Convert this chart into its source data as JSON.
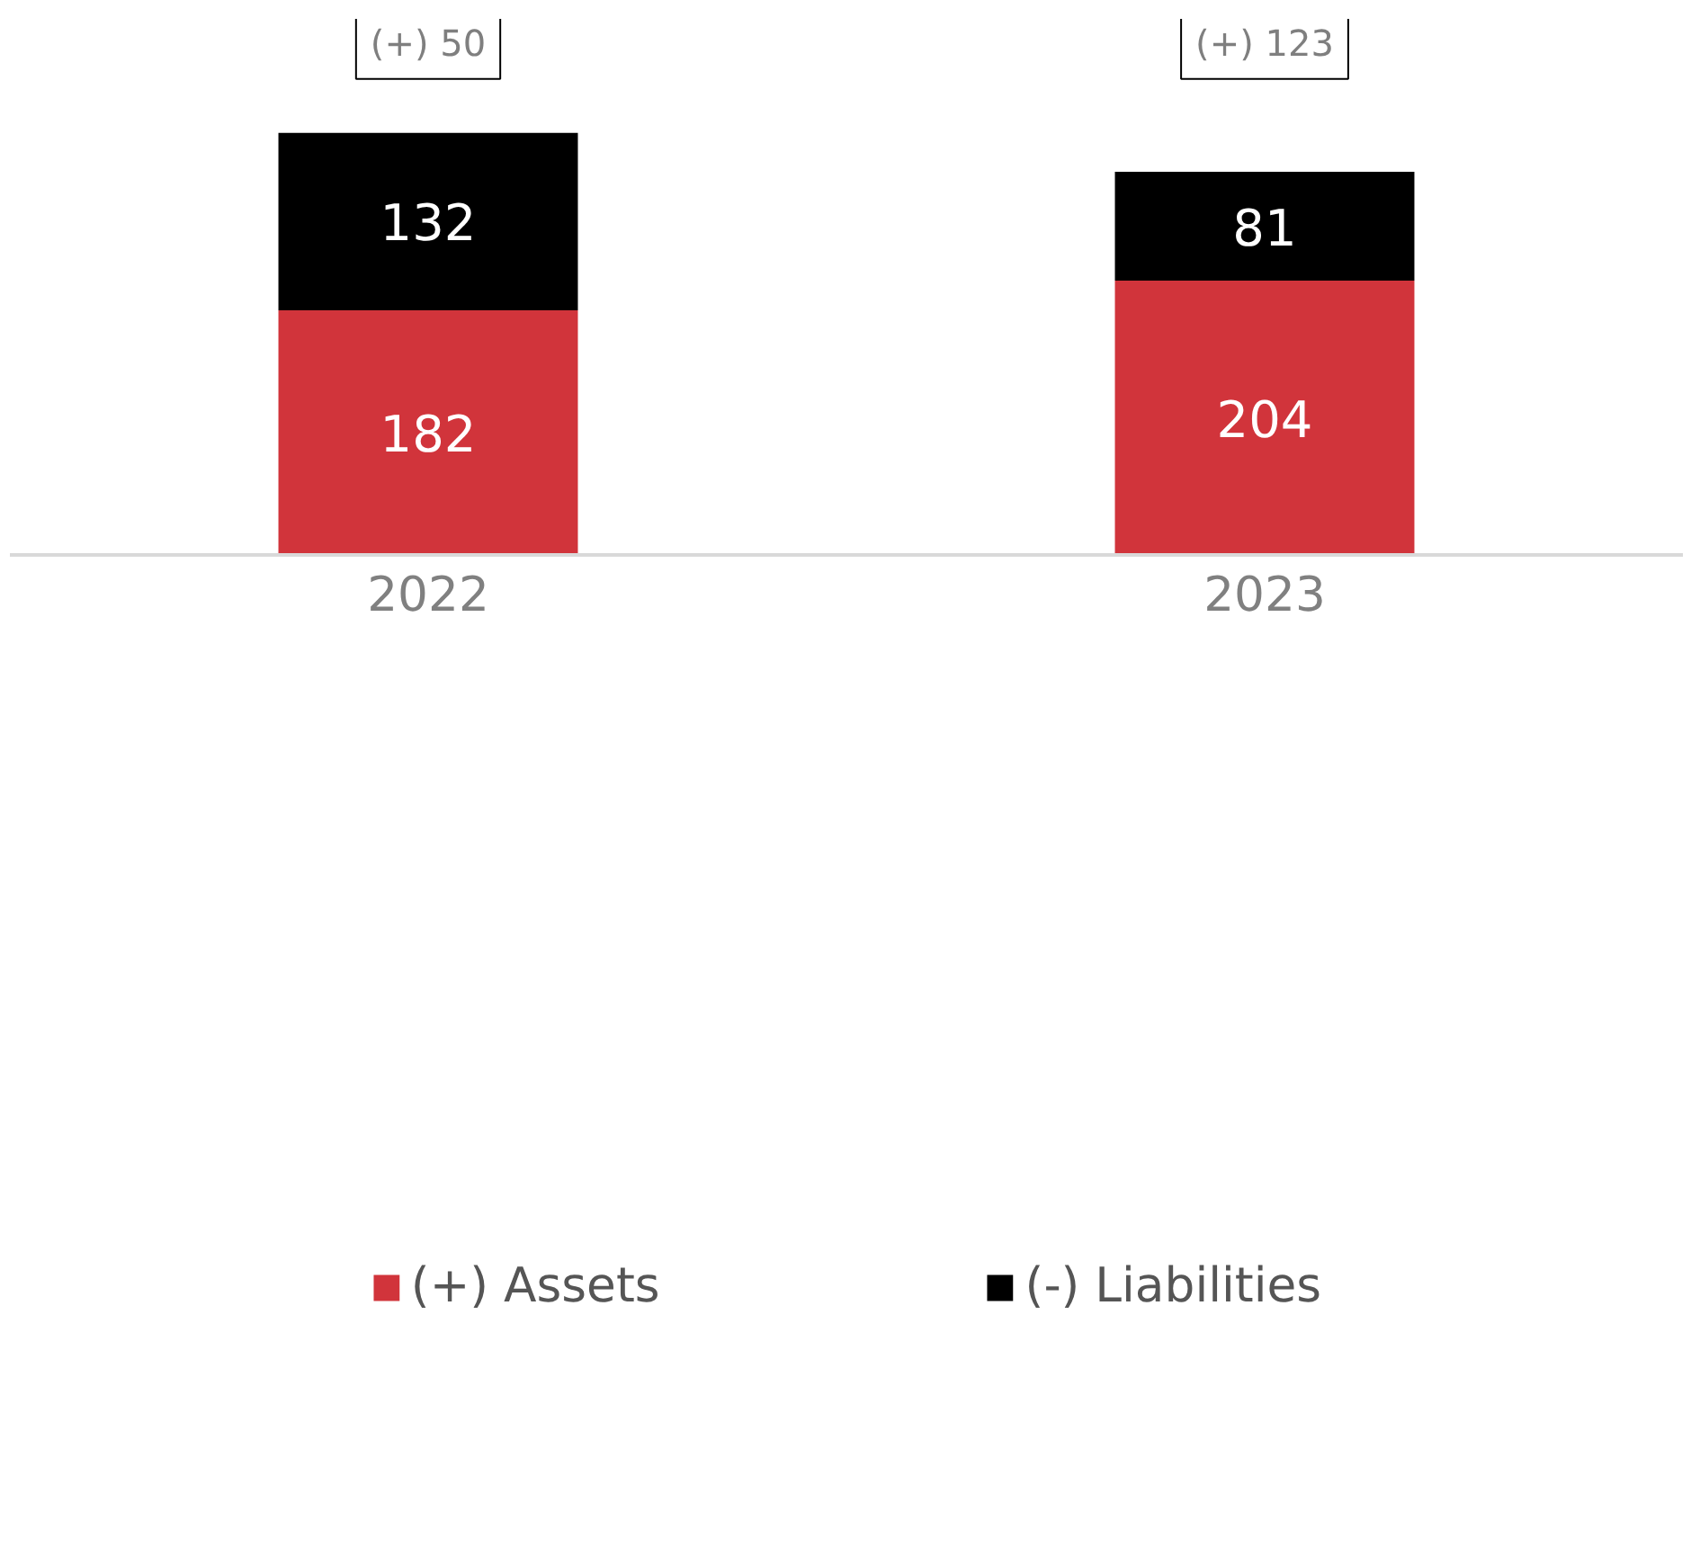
{
  "chart_data": {
    "type": "bar",
    "stacked": true,
    "categories": [
      "2022",
      "2023"
    ],
    "series": [
      {
        "name": "(+) Assets",
        "color": "#d1343b",
        "values": [
          182,
          204
        ]
      },
      {
        "name": "(-) Liabilities",
        "color": "#000000",
        "values": [
          132,
          81
        ]
      }
    ],
    "data_labels": true,
    "legend": "bottom",
    "grid": false,
    "annotations": [
      "(+) 50",
      "(+) 123"
    ]
  }
}
